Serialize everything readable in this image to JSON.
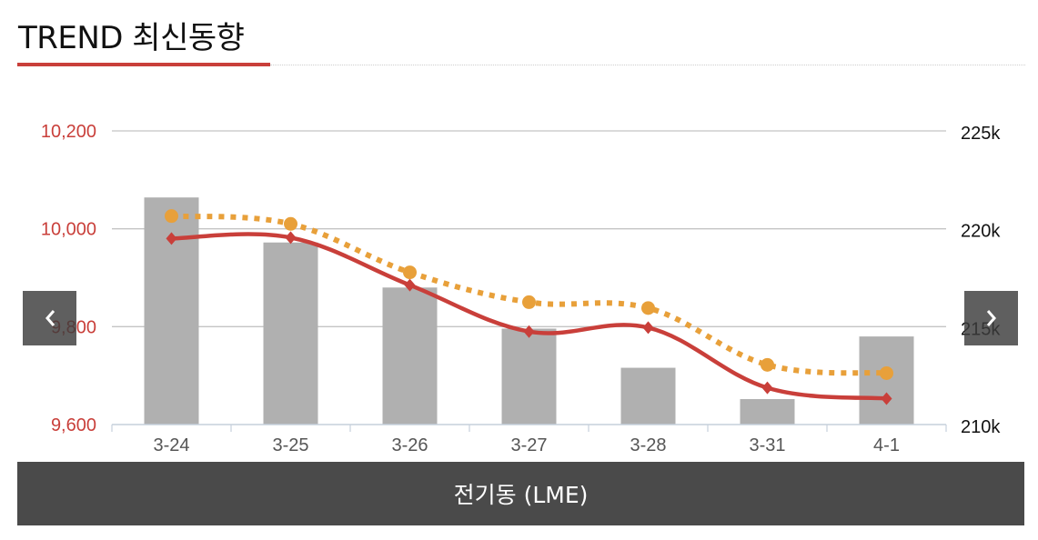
{
  "header": {
    "title": "TREND 최신동향"
  },
  "footer": {
    "label": "전기동 (LME)"
  },
  "nav": {
    "prev_icon": "chevron-left-icon",
    "next_icon": "chevron-right-icon"
  },
  "colors": {
    "accent": "#c93f3a",
    "bar": "#b0b0b0",
    "line_primary": "#c93f3a",
    "line_secondary": "#e8a03a",
    "footer_bg": "#4a4a4a"
  },
  "chart_data": {
    "type": "bar",
    "categories": [
      "3-24",
      "3-25",
      "3-26",
      "3-27",
      "3-28",
      "3-31",
      "4-1"
    ],
    "grid": true,
    "left_axis": {
      "ticks": [
        "9,600",
        "9,800",
        "10,000",
        "10,200"
      ],
      "range": [
        9600,
        10200
      ]
    },
    "right_axis": {
      "ticks": [
        "210k",
        "215k",
        "220k",
        "225k"
      ],
      "range": [
        210000,
        225000
      ]
    },
    "series": [
      {
        "type": "bar",
        "axis": "right",
        "values": [
          221600,
          219300,
          217000,
          214900,
          212900,
          211300,
          214500
        ]
      },
      {
        "type": "line",
        "axis": "left",
        "marker": "diamond",
        "smooth": true,
        "values": [
          9980,
          9982,
          9885,
          9790,
          9798,
          9675,
          9653
        ]
      },
      {
        "type": "line",
        "axis": "left",
        "marker": "circle",
        "dashed": true,
        "smooth": true,
        "values": [
          10026,
          10010,
          9911,
          9850,
          9838,
          9722,
          9705
        ]
      }
    ]
  }
}
